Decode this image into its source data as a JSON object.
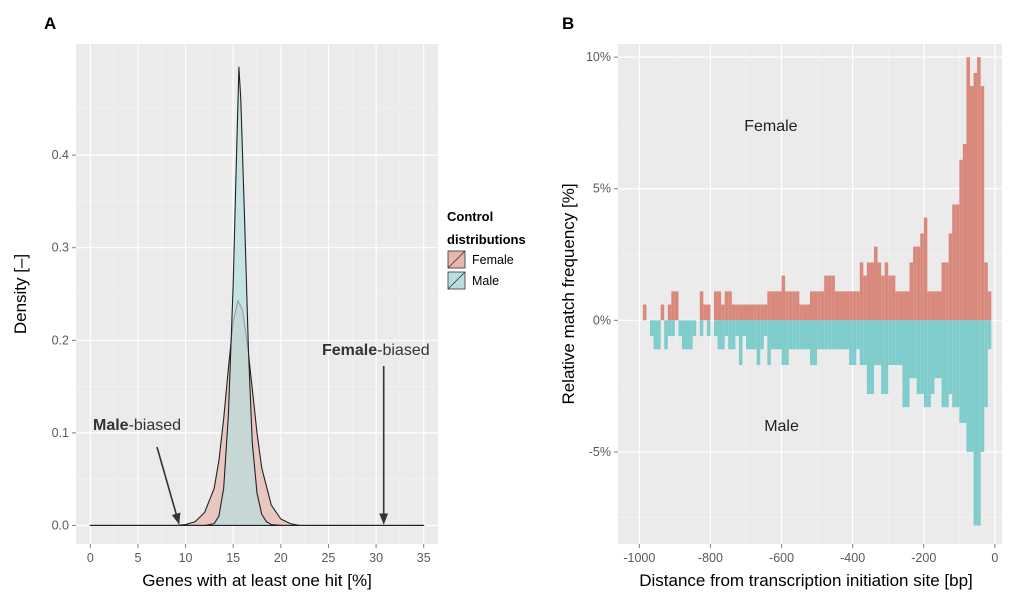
{
  "chart_data": [
    {
      "panel": "A",
      "type": "area",
      "title": "",
      "xlabel": "Genes with at least one hit [%]",
      "ylabel": "Density [–]",
      "xlim": [
        -1.5,
        36.5
      ],
      "ylim": [
        -0.02,
        0.52
      ],
      "xticks": [
        0,
        5,
        10,
        15,
        20,
        25,
        30,
        35
      ],
      "yticks": [
        0.0,
        0.1,
        0.2,
        0.3,
        0.4
      ],
      "ytick_labels": [
        "0.0",
        "0.1",
        "0.2",
        "0.3",
        "0.4"
      ],
      "grid": true,
      "legend": {
        "title": "Control distributions",
        "title_lines": [
          "Control",
          "distributions"
        ],
        "placement": "right",
        "entries": [
          "Female",
          "Male"
        ]
      },
      "series": [
        {
          "name": "Female",
          "color": "#e8b7ad",
          "x": [
            0,
            9,
            10,
            11,
            12,
            13,
            13.5,
            14,
            14.5,
            15,
            15.5,
            16,
            16.5,
            17,
            17.5,
            18,
            19,
            20,
            21,
            22,
            35
          ],
          "y": [
            0,
            0,
            0.001,
            0.004,
            0.014,
            0.04,
            0.07,
            0.115,
            0.17,
            0.22,
            0.243,
            0.232,
            0.195,
            0.148,
            0.1,
            0.062,
            0.022,
            0.007,
            0.002,
            0,
            0
          ]
        },
        {
          "name": "Male",
          "color": "#b8dede",
          "x": [
            0,
            12,
            13,
            13.5,
            14,
            14.5,
            15,
            15.3,
            15.6,
            15.8,
            16.2,
            16.6,
            17,
            17.5,
            18,
            18.5,
            19,
            20,
            35
          ],
          "y": [
            0,
            0,
            0.002,
            0.01,
            0.04,
            0.12,
            0.26,
            0.38,
            0.495,
            0.46,
            0.33,
            0.19,
            0.09,
            0.035,
            0.012,
            0.004,
            0.001,
            0,
            0
          ]
        }
      ],
      "annotations": [
        {
          "bold": "Male",
          "rest": "-biased",
          "x": 9.3
        },
        {
          "bold": "Female",
          "rest": "-biased",
          "x": 30.8
        }
      ]
    },
    {
      "panel": "B",
      "type": "bar",
      "title": "",
      "xlabel": "Distance from transcription initiation site [bp]",
      "ylabel": "Relative match frequency [%]",
      "xlim": [
        -1060,
        20
      ],
      "ylim": [
        -8.5,
        10.5
      ],
      "xticks": [
        -1000,
        -800,
        -600,
        -400,
        -200,
        0
      ],
      "xtick_labels": [
        "-1000",
        "-800",
        "-600",
        "-400",
        "-200",
        "0"
      ],
      "yticks": [
        10,
        5,
        0,
        -5
      ],
      "ytick_labels": [
        "10%",
        "5%",
        "0%",
        "-5%"
      ],
      "grid": true,
      "bin_width": 10,
      "x": [
        -980,
        -970,
        -960,
        -950,
        -940,
        -930,
        -920,
        -910,
        -900,
        -890,
        -880,
        -870,
        -860,
        -850,
        -840,
        -830,
        -820,
        -810,
        -800,
        -790,
        -780,
        -770,
        -760,
        -750,
        -740,
        -730,
        -720,
        -710,
        -700,
        -690,
        -680,
        -670,
        -660,
        -650,
        -640,
        -630,
        -620,
        -610,
        -600,
        -590,
        -580,
        -570,
        -560,
        -550,
        -540,
        -530,
        -520,
        -510,
        -500,
        -490,
        -480,
        -470,
        -460,
        -450,
        -440,
        -430,
        -420,
        -410,
        -400,
        -390,
        -380,
        -370,
        -360,
        -350,
        -340,
        -330,
        -320,
        -310,
        -300,
        -290,
        -280,
        -270,
        -260,
        -250,
        -240,
        -230,
        -220,
        -210,
        -200,
        -190,
        -180,
        -170,
        -160,
        -150,
        -140,
        -130,
        -120,
        -110,
        -100,
        -90,
        -80,
        -70,
        -60,
        -50,
        -40,
        -30,
        -20,
        -10,
        0
      ],
      "series": [
        {
          "name": "Female",
          "color": "#d9897c",
          "values": [
            0.6,
            0,
            0,
            0,
            0,
            0.6,
            0,
            0.6,
            1.1,
            1.1,
            0,
            0,
            0,
            0,
            0,
            0,
            1.1,
            0.6,
            0.6,
            0,
            1.1,
            1.1,
            0.6,
            1.1,
            1.1,
            0.6,
            0.6,
            0.6,
            0.6,
            0.6,
            0.6,
            0.6,
            0.6,
            0.6,
            0.6,
            1.1,
            1.1,
            1.1,
            1.1,
            1.7,
            1.1,
            1.1,
            1.1,
            1.1,
            0.6,
            0.6,
            0.6,
            1.1,
            1.1,
            1.1,
            1.1,
            1.7,
            1.7,
            1.7,
            1.1,
            1.1,
            1.1,
            1.1,
            1.1,
            1.1,
            1.1,
            2.2,
            1.7,
            2.2,
            2.2,
            2.8,
            2.2,
            1.7,
            2.2,
            1.7,
            1.7,
            1.1,
            1.1,
            1.1,
            1.1,
            2.2,
            2.8,
            2.8,
            3.3,
            3.9,
            1.1,
            1.1,
            1.1,
            1.1,
            2.2,
            2.2,
            3.3,
            4.4,
            4.4,
            6.1,
            6.7,
            10.0,
            8.9,
            9.4,
            10.0,
            8.9,
            2.2,
            1.1,
            0
          ],
          "side": "above"
        },
        {
          "name": "Male",
          "color": "#7fcccc",
          "values": [
            0,
            0,
            0.6,
            1.1,
            1.1,
            0,
            1.1,
            0.6,
            0.6,
            0,
            0.6,
            1.1,
            1.1,
            1.1,
            0.6,
            0,
            0.6,
            0,
            0.6,
            0,
            0.6,
            1.1,
            1.1,
            0.6,
            1.1,
            1.1,
            0.6,
            1.7,
            0.6,
            1.1,
            1.1,
            1.1,
            1.7,
            1.1,
            0.6,
            1.7,
            1.1,
            1.1,
            1.1,
            1.7,
            1.7,
            1.1,
            1.1,
            1.1,
            1.1,
            1.1,
            1.1,
            1.7,
            1.7,
            1.1,
            1.1,
            1.1,
            1.1,
            1.1,
            1.1,
            1.1,
            1.1,
            1.1,
            1.7,
            1.7,
            1.1,
            1.7,
            1.7,
            2.8,
            2.8,
            1.7,
            1.7,
            2.8,
            2.8,
            1.7,
            1.7,
            1.7,
            1.7,
            3.3,
            3.3,
            2.2,
            2.2,
            2.8,
            2.8,
            3.3,
            3.3,
            2.8,
            2.2,
            2.2,
            3.3,
            3.3,
            2.8,
            3.3,
            3.3,
            3.9,
            3.9,
            5.0,
            5.0,
            7.8,
            7.8,
            5.0,
            3.3,
            1.1,
            0
          ],
          "side": "below"
        }
      ],
      "in_plot_labels": [
        {
          "text": "Female",
          "x": -630,
          "y": 7.2
        },
        {
          "text": "Male",
          "x": -600,
          "y": -4.2
        }
      ]
    }
  ],
  "panel_labels": [
    "A",
    "B"
  ]
}
